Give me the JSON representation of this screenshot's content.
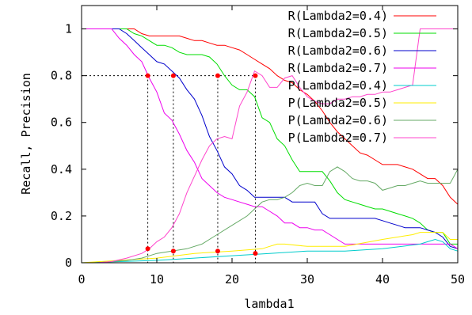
{
  "chart_data": {
    "type": "line",
    "title": "",
    "xlabel": "lambda1",
    "ylabel": "Recall, Precision",
    "xlim": [
      0,
      50
    ],
    "ylim": [
      0,
      1.1
    ],
    "xticks": [
      0,
      10,
      20,
      30,
      40,
      50
    ],
    "yticks": [
      0,
      0.2,
      0.4,
      0.6,
      0.8,
      1
    ],
    "ytick_labels": [
      "0",
      "0.2",
      "0.4",
      "0.6",
      "0.8",
      "1"
    ],
    "grid": false,
    "legend_position": "top-right",
    "series": [
      {
        "name": "R(Lambda2=0.4)",
        "color": "#ff0000",
        "x": [
          0,
          1,
          2,
          3,
          4,
          5,
          6,
          7,
          8,
          9,
          10,
          11,
          12,
          13,
          14,
          15,
          16,
          17,
          18,
          19,
          20,
          21,
          22,
          23,
          24,
          25,
          26,
          27,
          28,
          29,
          30,
          31,
          32,
          33,
          34,
          35,
          36,
          37,
          38,
          39,
          40,
          41,
          42,
          43,
          44,
          45,
          46,
          47,
          48,
          49,
          50
        ],
        "values": [
          1,
          1,
          1,
          1,
          1,
          1,
          1,
          1,
          0.98,
          0.97,
          0.97,
          0.97,
          0.97,
          0.97,
          0.96,
          0.95,
          0.95,
          0.94,
          0.93,
          0.93,
          0.92,
          0.91,
          0.89,
          0.87,
          0.85,
          0.83,
          0.8,
          0.78,
          0.77,
          0.74,
          0.72,
          0.69,
          0.65,
          0.6,
          0.56,
          0.53,
          0.5,
          0.47,
          0.46,
          0.44,
          0.42,
          0.42,
          0.42,
          0.41,
          0.4,
          0.38,
          0.36,
          0.36,
          0.33,
          0.28,
          0.25
        ]
      },
      {
        "name": "R(Lambda2=0.5)",
        "color": "#00dd00",
        "x": [
          0,
          1,
          2,
          3,
          4,
          5,
          6,
          7,
          8,
          9,
          10,
          11,
          12,
          13,
          14,
          15,
          16,
          17,
          18,
          19,
          20,
          21,
          22,
          23,
          24,
          25,
          26,
          27,
          28,
          29,
          30,
          31,
          32,
          33,
          34,
          35,
          36,
          37,
          38,
          39,
          40,
          41,
          42,
          43,
          44,
          45,
          46,
          47,
          48,
          49,
          50
        ],
        "values": [
          1,
          1,
          1,
          1,
          1,
          1,
          1,
          0.98,
          0.97,
          0.95,
          0.93,
          0.93,
          0.92,
          0.9,
          0.89,
          0.89,
          0.89,
          0.88,
          0.85,
          0.8,
          0.76,
          0.74,
          0.74,
          0.71,
          0.62,
          0.6,
          0.53,
          0.5,
          0.44,
          0.39,
          0.39,
          0.39,
          0.39,
          0.35,
          0.3,
          0.27,
          0.26,
          0.25,
          0.24,
          0.23,
          0.23,
          0.22,
          0.21,
          0.2,
          0.19,
          0.17,
          0.14,
          0.13,
          0.13,
          0.08,
          0.08
        ]
      },
      {
        "name": "R(Lambda2=0.6)",
        "color": "#0000cc",
        "x": [
          0,
          1,
          2,
          3,
          4,
          5,
          6,
          7,
          8,
          9,
          10,
          11,
          12,
          13,
          14,
          15,
          16,
          17,
          18,
          19,
          20,
          21,
          22,
          23,
          24,
          25,
          26,
          27,
          28,
          29,
          30,
          31,
          32,
          33,
          34,
          35,
          36,
          37,
          38,
          39,
          40,
          41,
          42,
          43,
          44,
          45,
          46,
          47,
          48,
          49,
          50
        ],
        "values": [
          1,
          1,
          1,
          1,
          1,
          1,
          0.98,
          0.95,
          0.92,
          0.89,
          0.86,
          0.85,
          0.82,
          0.79,
          0.74,
          0.7,
          0.63,
          0.54,
          0.48,
          0.41,
          0.38,
          0.33,
          0.31,
          0.28,
          0.28,
          0.28,
          0.28,
          0.28,
          0.26,
          0.26,
          0.26,
          0.26,
          0.21,
          0.19,
          0.19,
          0.19,
          0.19,
          0.19,
          0.19,
          0.19,
          0.18,
          0.17,
          0.16,
          0.15,
          0.15,
          0.15,
          0.14,
          0.13,
          0.11,
          0.07,
          0.06
        ]
      },
      {
        "name": "R(Lambda2=0.7)",
        "color": "#ee00ee",
        "x": [
          0,
          1,
          2,
          3,
          4,
          5,
          6,
          7,
          8,
          9,
          10,
          11,
          12,
          13,
          14,
          15,
          16,
          17,
          18,
          19,
          20,
          21,
          22,
          23,
          24,
          25,
          26,
          27,
          28,
          29,
          30,
          31,
          32,
          33,
          34,
          35,
          36,
          37,
          38,
          39,
          40,
          41,
          42,
          43,
          44,
          45,
          46,
          47,
          48,
          49,
          50
        ],
        "values": [
          1,
          1,
          1,
          1,
          1,
          0.96,
          0.93,
          0.89,
          0.86,
          0.79,
          0.73,
          0.64,
          0.61,
          0.55,
          0.48,
          0.43,
          0.36,
          0.33,
          0.3,
          0.28,
          0.27,
          0.26,
          0.25,
          0.24,
          0.24,
          0.22,
          0.2,
          0.17,
          0.17,
          0.15,
          0.15,
          0.14,
          0.14,
          0.12,
          0.1,
          0.08,
          0.08,
          0.08,
          0.08,
          0.08,
          0.08,
          0.08,
          0.08,
          0.08,
          0.08,
          0.08,
          0.08,
          0.08,
          0.08,
          0.08,
          0.06
        ]
      },
      {
        "name": "P(Lambda2=0.4)",
        "color": "#00cccc",
        "x": [
          0,
          5,
          10,
          15,
          20,
          25,
          30,
          35,
          40,
          45,
          46,
          47,
          48,
          49,
          50
        ],
        "values": [
          0,
          0.005,
          0.01,
          0.02,
          0.03,
          0.04,
          0.05,
          0.05,
          0.06,
          0.08,
          0.09,
          0.1,
          0.09,
          0.06,
          0.05
        ]
      },
      {
        "name": "P(Lambda2=0.5)",
        "color": "#ffee00",
        "x": [
          0,
          5,
          10,
          15,
          20,
          24,
          25,
          26,
          27,
          30,
          35,
          40,
          44,
          45,
          48,
          49,
          50
        ],
        "values": [
          0,
          0.01,
          0.02,
          0.04,
          0.05,
          0.06,
          0.07,
          0.08,
          0.08,
          0.07,
          0.07,
          0.1,
          0.12,
          0.13,
          0.13,
          0.1,
          0.1
        ]
      },
      {
        "name": "P(Lambda2=0.6)",
        "color": "#66aa66",
        "x": [
          0,
          2,
          4,
          6,
          8,
          10,
          12,
          14,
          16,
          18,
          20,
          22,
          23,
          24,
          25,
          26,
          27,
          28,
          29,
          30,
          31,
          32,
          33,
          34,
          35,
          36,
          37,
          38,
          39,
          40,
          41,
          42,
          43,
          44,
          45,
          46,
          47,
          48,
          49,
          50
        ],
        "values": [
          0,
          0,
          0.005,
          0.01,
          0.02,
          0.04,
          0.05,
          0.06,
          0.08,
          0.12,
          0.16,
          0.2,
          0.23,
          0.26,
          0.27,
          0.27,
          0.28,
          0.3,
          0.33,
          0.34,
          0.33,
          0.33,
          0.39,
          0.41,
          0.39,
          0.36,
          0.35,
          0.35,
          0.34,
          0.31,
          0.32,
          0.33,
          0.33,
          0.34,
          0.35,
          0.34,
          0.34,
          0.34,
          0.34,
          0.4
        ]
      },
      {
        "name": "P(Lambda2=0.7)",
        "color": "#ff44cc",
        "x": [
          0,
          2,
          4,
          6,
          8,
          9,
          10,
          11,
          12,
          13,
          14,
          15,
          16,
          17,
          18,
          19,
          20,
          21,
          22,
          23,
          24,
          25,
          26,
          27,
          28,
          29,
          30,
          31,
          32,
          33,
          34,
          35,
          36,
          37,
          38,
          39,
          40,
          41,
          42,
          43,
          44,
          45,
          46,
          47,
          48,
          49,
          50
        ],
        "values": [
          0,
          0,
          0.005,
          0.02,
          0.04,
          0.06,
          0.09,
          0.11,
          0.15,
          0.21,
          0.3,
          0.37,
          0.44,
          0.5,
          0.53,
          0.54,
          0.53,
          0.67,
          0.73,
          0.82,
          0.8,
          0.75,
          0.75,
          0.79,
          0.8,
          0.75,
          0.71,
          0.69,
          0.68,
          0.68,
          0.7,
          0.7,
          0.71,
          0.71,
          0.72,
          0.72,
          0.73,
          0.73,
          0.74,
          0.75,
          0.76,
          1,
          1,
          1,
          1,
          1,
          1
        ]
      }
    ],
    "reference_points": [
      {
        "x": 8.8,
        "recall": 0.8,
        "precision": 0.06
      },
      {
        "x": 12.2,
        "recall": 0.8,
        "precision": 0.05
      },
      {
        "x": 18.1,
        "recall": 0.8,
        "precision": 0.05
      },
      {
        "x": 23.1,
        "recall": 0.8,
        "precision": 0.04
      }
    ],
    "reference_recall": 0.8,
    "reference_color": "#ff0000"
  }
}
